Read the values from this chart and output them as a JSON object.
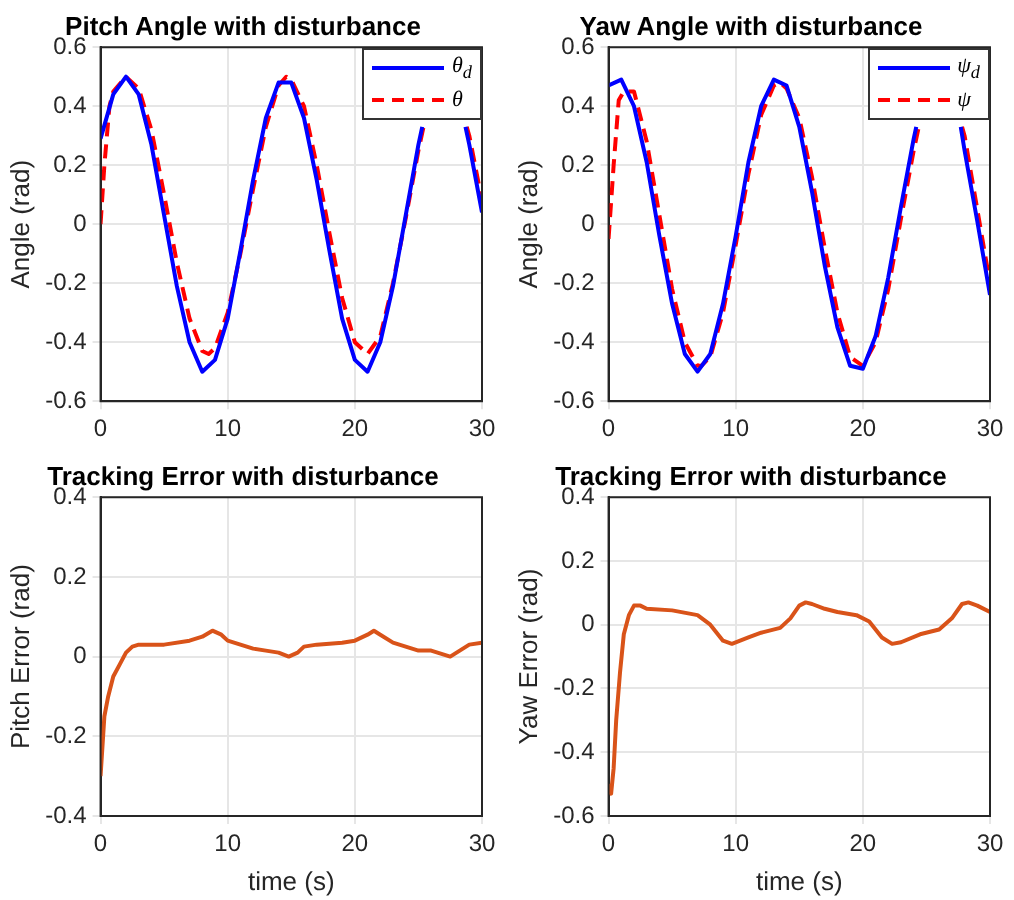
{
  "chart_data": [
    {
      "type": "line",
      "title": "Pitch Angle with disturbance",
      "ylabel": "Angle (rad)",
      "xlim": [
        0,
        30
      ],
      "xticks": [
        0,
        10,
        20,
        30
      ],
      "ylim": [
        -0.6,
        0.6
      ],
      "yticks": [
        -0.6,
        -0.4,
        -0.2,
        0,
        0.2,
        0.4,
        0.6
      ],
      "grid": true,
      "legend": "top right",
      "marker": "none",
      "series": [
        {
          "name": "θ$_{d}$",
          "color": "#0000ff",
          "line_style": "solid",
          "x": [
            0,
            1,
            2,
            3,
            4,
            5,
            6,
            7,
            8,
            9,
            10,
            11,
            12,
            13,
            14,
            15,
            16,
            17,
            18,
            19,
            20,
            21,
            22,
            23,
            24,
            25,
            25.3,
            26,
            27,
            28,
            28.7,
            29,
            30
          ],
          "values": [
            0.29,
            0.44,
            0.5,
            0.44,
            0.27,
            0.03,
            -0.21,
            -0.4,
            -0.5,
            -0.46,
            -0.32,
            -0.09,
            0.15,
            0.36,
            0.48,
            0.48,
            0.36,
            0.15,
            -0.09,
            -0.32,
            -0.46,
            -0.5,
            -0.4,
            -0.21,
            0.03,
            0.27,
            0.33,
            null,
            null,
            null,
            0.33,
            0.27,
            0.04
          ]
        },
        {
          "name": "θ",
          "color": "#ff0000",
          "line_style": "dashed",
          "x": [
            0,
            0.3,
            0.7,
            1,
            2,
            3,
            4,
            5,
            6,
            7,
            8,
            8.5,
            9,
            10,
            11,
            12,
            13,
            14,
            14.6,
            15,
            16,
            17,
            18,
            19,
            20,
            21,
            22,
            23,
            24,
            25,
            25.4,
            26,
            27,
            28,
            28.8,
            29,
            30
          ],
          "values": [
            0,
            0.2,
            0.4,
            0.45,
            0.5,
            0.46,
            0.32,
            0.1,
            -0.13,
            -0.32,
            -0.43,
            -0.44,
            -0.42,
            -0.3,
            -0.1,
            0.12,
            0.33,
            0.47,
            0.5,
            0.49,
            0.4,
            0.2,
            -0.03,
            -0.25,
            -0.4,
            -0.44,
            -0.38,
            -0.2,
            0.02,
            0.25,
            0.33,
            null,
            null,
            null,
            0.33,
            0.3,
            0.08
          ]
        }
      ]
    },
    {
      "type": "line",
      "title": "Yaw Angle with disturbance",
      "ylabel": "Angle (rad)",
      "xlim": [
        0,
        30
      ],
      "xticks": [
        0,
        10,
        20,
        30
      ],
      "ylim": [
        -0.6,
        0.6
      ],
      "yticks": [
        -0.6,
        -0.4,
        -0.2,
        0,
        0.2,
        0.4,
        0.6
      ],
      "grid": true,
      "legend": "top right",
      "marker": "none",
      "series": [
        {
          "name": "ψ$_{d}$",
          "color": "#0000ff",
          "line_style": "solid",
          "x": [
            0,
            1,
            2,
            3,
            4,
            5,
            6,
            7,
            8,
            9,
            10,
            11,
            12,
            13,
            14,
            15,
            16,
            17,
            18,
            19,
            20,
            21,
            22,
            23,
            24,
            24.2,
            25,
            26,
            27,
            27.7,
            28,
            29,
            30
          ],
          "values": [
            0.47,
            0.49,
            0.4,
            0.21,
            -0.04,
            -0.27,
            -0.44,
            -0.5,
            -0.44,
            -0.27,
            -0.04,
            0.21,
            0.4,
            0.49,
            0.47,
            0.33,
            0.11,
            -0.14,
            -0.35,
            -0.48,
            -0.49,
            -0.38,
            -0.18,
            0.06,
            0.29,
            0.33,
            null,
            null,
            null,
            0.33,
            0.25,
            0.01,
            -0.24
          ]
        },
        {
          "name": "ψ",
          "color": "#ff0000",
          "line_style": "dashed",
          "x": [
            0,
            0.4,
            0.8,
            1.2,
            2,
            3,
            4,
            5,
            6,
            7,
            7.3,
            8,
            9,
            10,
            11,
            12,
            13,
            13.5,
            14,
            15,
            16,
            17,
            18,
            19,
            20,
            21,
            22,
            23,
            24,
            24.4,
            25,
            26,
            27,
            27.8,
            28,
            29,
            30
          ],
          "values": [
            -0.05,
            0.2,
            0.42,
            0.45,
            0.45,
            0.28,
            0.03,
            -0.22,
            -0.4,
            -0.48,
            -0.48,
            -0.45,
            -0.3,
            -0.07,
            0.17,
            0.37,
            0.47,
            0.48,
            0.46,
            0.36,
            0.16,
            -0.08,
            -0.3,
            -0.45,
            -0.48,
            -0.4,
            -0.22,
            0.02,
            0.25,
            0.33,
            null,
            null,
            null,
            0.33,
            0.3,
            0.05,
            -0.2
          ]
        }
      ]
    },
    {
      "type": "line",
      "title": "Tracking Error with disturbance",
      "xlabel": "time (s)",
      "ylabel": "Pitch Error (rad)",
      "xlim": [
        0,
        30
      ],
      "xticks": [
        0,
        10,
        20,
        30
      ],
      "ylim": [
        -0.4,
        0.4
      ],
      "yticks": [
        -0.4,
        -0.2,
        0,
        0.2,
        0.4
      ],
      "grid": true,
      "marker": "none",
      "series": [
        {
          "color": "#d95319",
          "line_style": "solid",
          "x": [
            0,
            0.1,
            0.3,
            0.6,
            1,
            1.5,
            2,
            2.5,
            3,
            5,
            7,
            8,
            8.8,
            9.5,
            10,
            11,
            12,
            13,
            14,
            14.8,
            15.5,
            16,
            17,
            19,
            20,
            21,
            21.5,
            22,
            23,
            24,
            25,
            26,
            27,
            27.5,
            28,
            29,
            30
          ],
          "values": [
            -0.3,
            -0.3,
            -0.15,
            -0.1,
            -0.05,
            -0.02,
            0.01,
            0.025,
            0.03,
            0.03,
            0.04,
            0.05,
            0.065,
            0.055,
            0.04,
            0.03,
            0.02,
            0.015,
            0.01,
            0,
            0.01,
            0.025,
            0.03,
            0.035,
            0.04,
            0.055,
            0.065,
            0.055,
            0.035,
            0.025,
            0.015,
            0.015,
            0.005,
            0,
            0.01,
            0.03,
            0.035
          ]
        }
      ]
    },
    {
      "type": "line",
      "title": "Tracking Error with disturbance",
      "xlabel": "time (s)",
      "ylabel": "Yaw Error (rad)",
      "xlim": [
        0,
        30
      ],
      "xticks": [
        0,
        10,
        20,
        30
      ],
      "ylim": [
        -0.6,
        0.4
      ],
      "yticks": [
        -0.6,
        -0.4,
        -0.2,
        0,
        0.2,
        0.4
      ],
      "grid": true,
      "marker": "none",
      "series": [
        {
          "color": "#d95319",
          "line_style": "solid",
          "x": [
            0,
            0.2,
            0.4,
            0.6,
            0.9,
            1.2,
            1.6,
            2,
            2.5,
            3,
            5,
            7,
            8,
            9,
            9.7,
            11,
            12,
            13.5,
            14.3,
            15,
            15.5,
            16,
            17,
            18,
            19.5,
            20.5,
            21.5,
            22.3,
            23,
            24.5,
            26,
            27,
            27.8,
            28.3,
            29,
            30
          ],
          "values": [
            -0.5,
            -0.53,
            -0.45,
            -0.3,
            -0.15,
            -0.03,
            0.03,
            0.06,
            0.06,
            0.05,
            0.045,
            0.03,
            0,
            -0.05,
            -0.06,
            -0.04,
            -0.025,
            -0.01,
            0.02,
            0.06,
            0.07,
            0.065,
            0.05,
            0.04,
            0.03,
            0.01,
            -0.04,
            -0.06,
            -0.055,
            -0.03,
            -0.015,
            0.02,
            0.065,
            0.07,
            0.06,
            0.04
          ]
        }
      ]
    }
  ]
}
